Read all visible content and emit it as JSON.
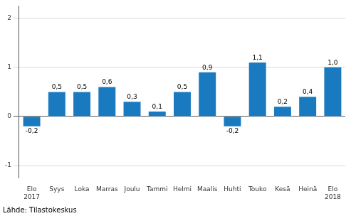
{
  "chart_data": {
    "type": "bar",
    "categories": [
      "Elo\n2017",
      "Syys",
      "Loka",
      "Marras",
      "Joulu",
      "Tammi",
      "Helmi",
      "Maalis",
      "Huhti",
      "Touko",
      "Kesä",
      "Heinä",
      "Elo\n2018"
    ],
    "values": [
      -0.2,
      0.5,
      0.5,
      0.6,
      0.3,
      0.1,
      0.5,
      0.9,
      -0.2,
      1.1,
      0.2,
      0.4,
      1.0
    ],
    "value_labels": [
      "-0,2",
      "0,5",
      "0,5",
      "0,6",
      "0,3",
      "0,1",
      "0,5",
      "0,9",
      "-0,2",
      "1,1",
      "0,2",
      "0,4",
      "1,0"
    ],
    "data_labels": true,
    "color": "#1a7abf",
    "ylim": [
      -1.25,
      2.25
    ],
    "yticks": [
      -1,
      0,
      1,
      2
    ],
    "grid": true,
    "annotations": [
      "Lähde: Tilastokeskus"
    ]
  }
}
